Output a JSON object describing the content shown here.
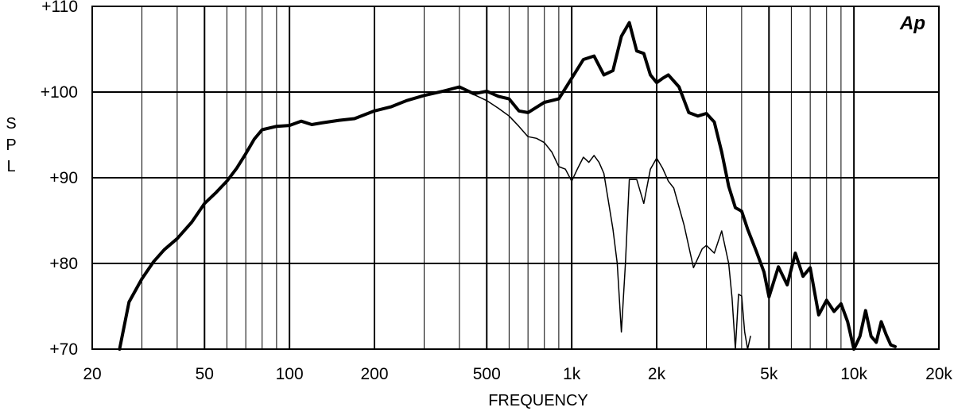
{
  "chart_data": {
    "type": "line",
    "xlabel": "FREQUENCY",
    "ylabel": "S P L",
    "xscale": "log",
    "xlim": [
      20,
      20000
    ],
    "ylim": [
      70,
      110
    ],
    "grid": true,
    "xticks": [
      {
        "value": 20,
        "label": "20"
      },
      {
        "value": 50,
        "label": "50"
      },
      {
        "value": 100,
        "label": "100"
      },
      {
        "value": 200,
        "label": "200"
      },
      {
        "value": 500,
        "label": "500"
      },
      {
        "value": 1000,
        "label": "1k"
      },
      {
        "value": 2000,
        "label": "2k"
      },
      {
        "value": 5000,
        "label": "5k"
      },
      {
        "value": 10000,
        "label": "10k"
      },
      {
        "value": 20000,
        "label": "20k"
      }
    ],
    "yticks": [
      {
        "value": 70,
        "label": "+70"
      },
      {
        "value": 80,
        "label": "+80"
      },
      {
        "value": 90,
        "label": "+90"
      },
      {
        "value": 100,
        "label": "+100"
      },
      {
        "value": 110,
        "label": "+110"
      }
    ],
    "logo_text": "Ap",
    "series": [
      {
        "style": "thick",
        "x": [
          25,
          27,
          30,
          33,
          36,
          40,
          45,
          50,
          55,
          60,
          65,
          70,
          75,
          80,
          90,
          100,
          110,
          120,
          130,
          150,
          170,
          200,
          230,
          260,
          300,
          350,
          400,
          450,
          500,
          550,
          600,
          650,
          700,
          800,
          900,
          1000,
          1100,
          1200,
          1300,
          1400,
          1500,
          1600,
          1700,
          1800,
          1900,
          2000,
          2100,
          2200,
          2400,
          2600,
          2800,
          3000,
          3200,
          3400,
          3600,
          3800,
          4000,
          4200,
          4500,
          4800,
          5000,
          5400,
          5800,
          6200,
          6600,
          7000,
          7500,
          8000,
          8500,
          9000,
          9500,
          10000,
          10500,
          11000,
          11500,
          12000,
          12500,
          13000,
          13500,
          14000
        ],
        "y": [
          70,
          75.5,
          78.2,
          80.2,
          81.6,
          82.9,
          84.8,
          87,
          88.3,
          89.6,
          91.1,
          92.8,
          94.5,
          95.6,
          96,
          96.1,
          96.6,
          96.2,
          96.4,
          96.7,
          96.9,
          97.8,
          98.3,
          99,
          99.6,
          100.1,
          100.6,
          99.8,
          100.1,
          99.5,
          99.2,
          97.8,
          97.6,
          98.8,
          99.2,
          101.6,
          103.8,
          104.2,
          102,
          102.5,
          106.5,
          108.1,
          104.8,
          104.5,
          102,
          101.1,
          101.6,
          102,
          100.6,
          97.6,
          97.2,
          97.5,
          96.5,
          93,
          89,
          86.5,
          86.1,
          84,
          81.5,
          79,
          76.1,
          79.6,
          77.5,
          81.2,
          78.5,
          79.5,
          74,
          75.7,
          74.4,
          75.3,
          73.2,
          70,
          71.5,
          74.5,
          71.5,
          70.8,
          73.2,
          71.7,
          70.5,
          70.3
        ]
      },
      {
        "style": "thin",
        "x": [
          400,
          450,
          500,
          550,
          600,
          650,
          700,
          750,
          800,
          850,
          900,
          950,
          1000,
          1050,
          1100,
          1150,
          1200,
          1250,
          1300,
          1400,
          1450,
          1500,
          1550,
          1600,
          1700,
          1800,
          1900,
          2000,
          2100,
          2200,
          2300,
          2500,
          2700,
          2900,
          3000,
          3200,
          3400,
          3600,
          3700,
          3800,
          3900,
          4000,
          4100,
          4200,
          4300
        ],
        "y": [
          100.6,
          99.7,
          99,
          98.1,
          97.2,
          96,
          94.8,
          94.6,
          94.1,
          93,
          91.3,
          91,
          89.6,
          91.1,
          92.4,
          91.8,
          92.6,
          91.8,
          90.5,
          84,
          80,
          72,
          80,
          89.8,
          89.8,
          87,
          91,
          92.3,
          91.1,
          89.6,
          88.8,
          84.5,
          79.5,
          81.7,
          82.1,
          81.2,
          83.8,
          80,
          76,
          70,
          76.4,
          76.2,
          72,
          70,
          71.5
        ]
      }
    ]
  }
}
